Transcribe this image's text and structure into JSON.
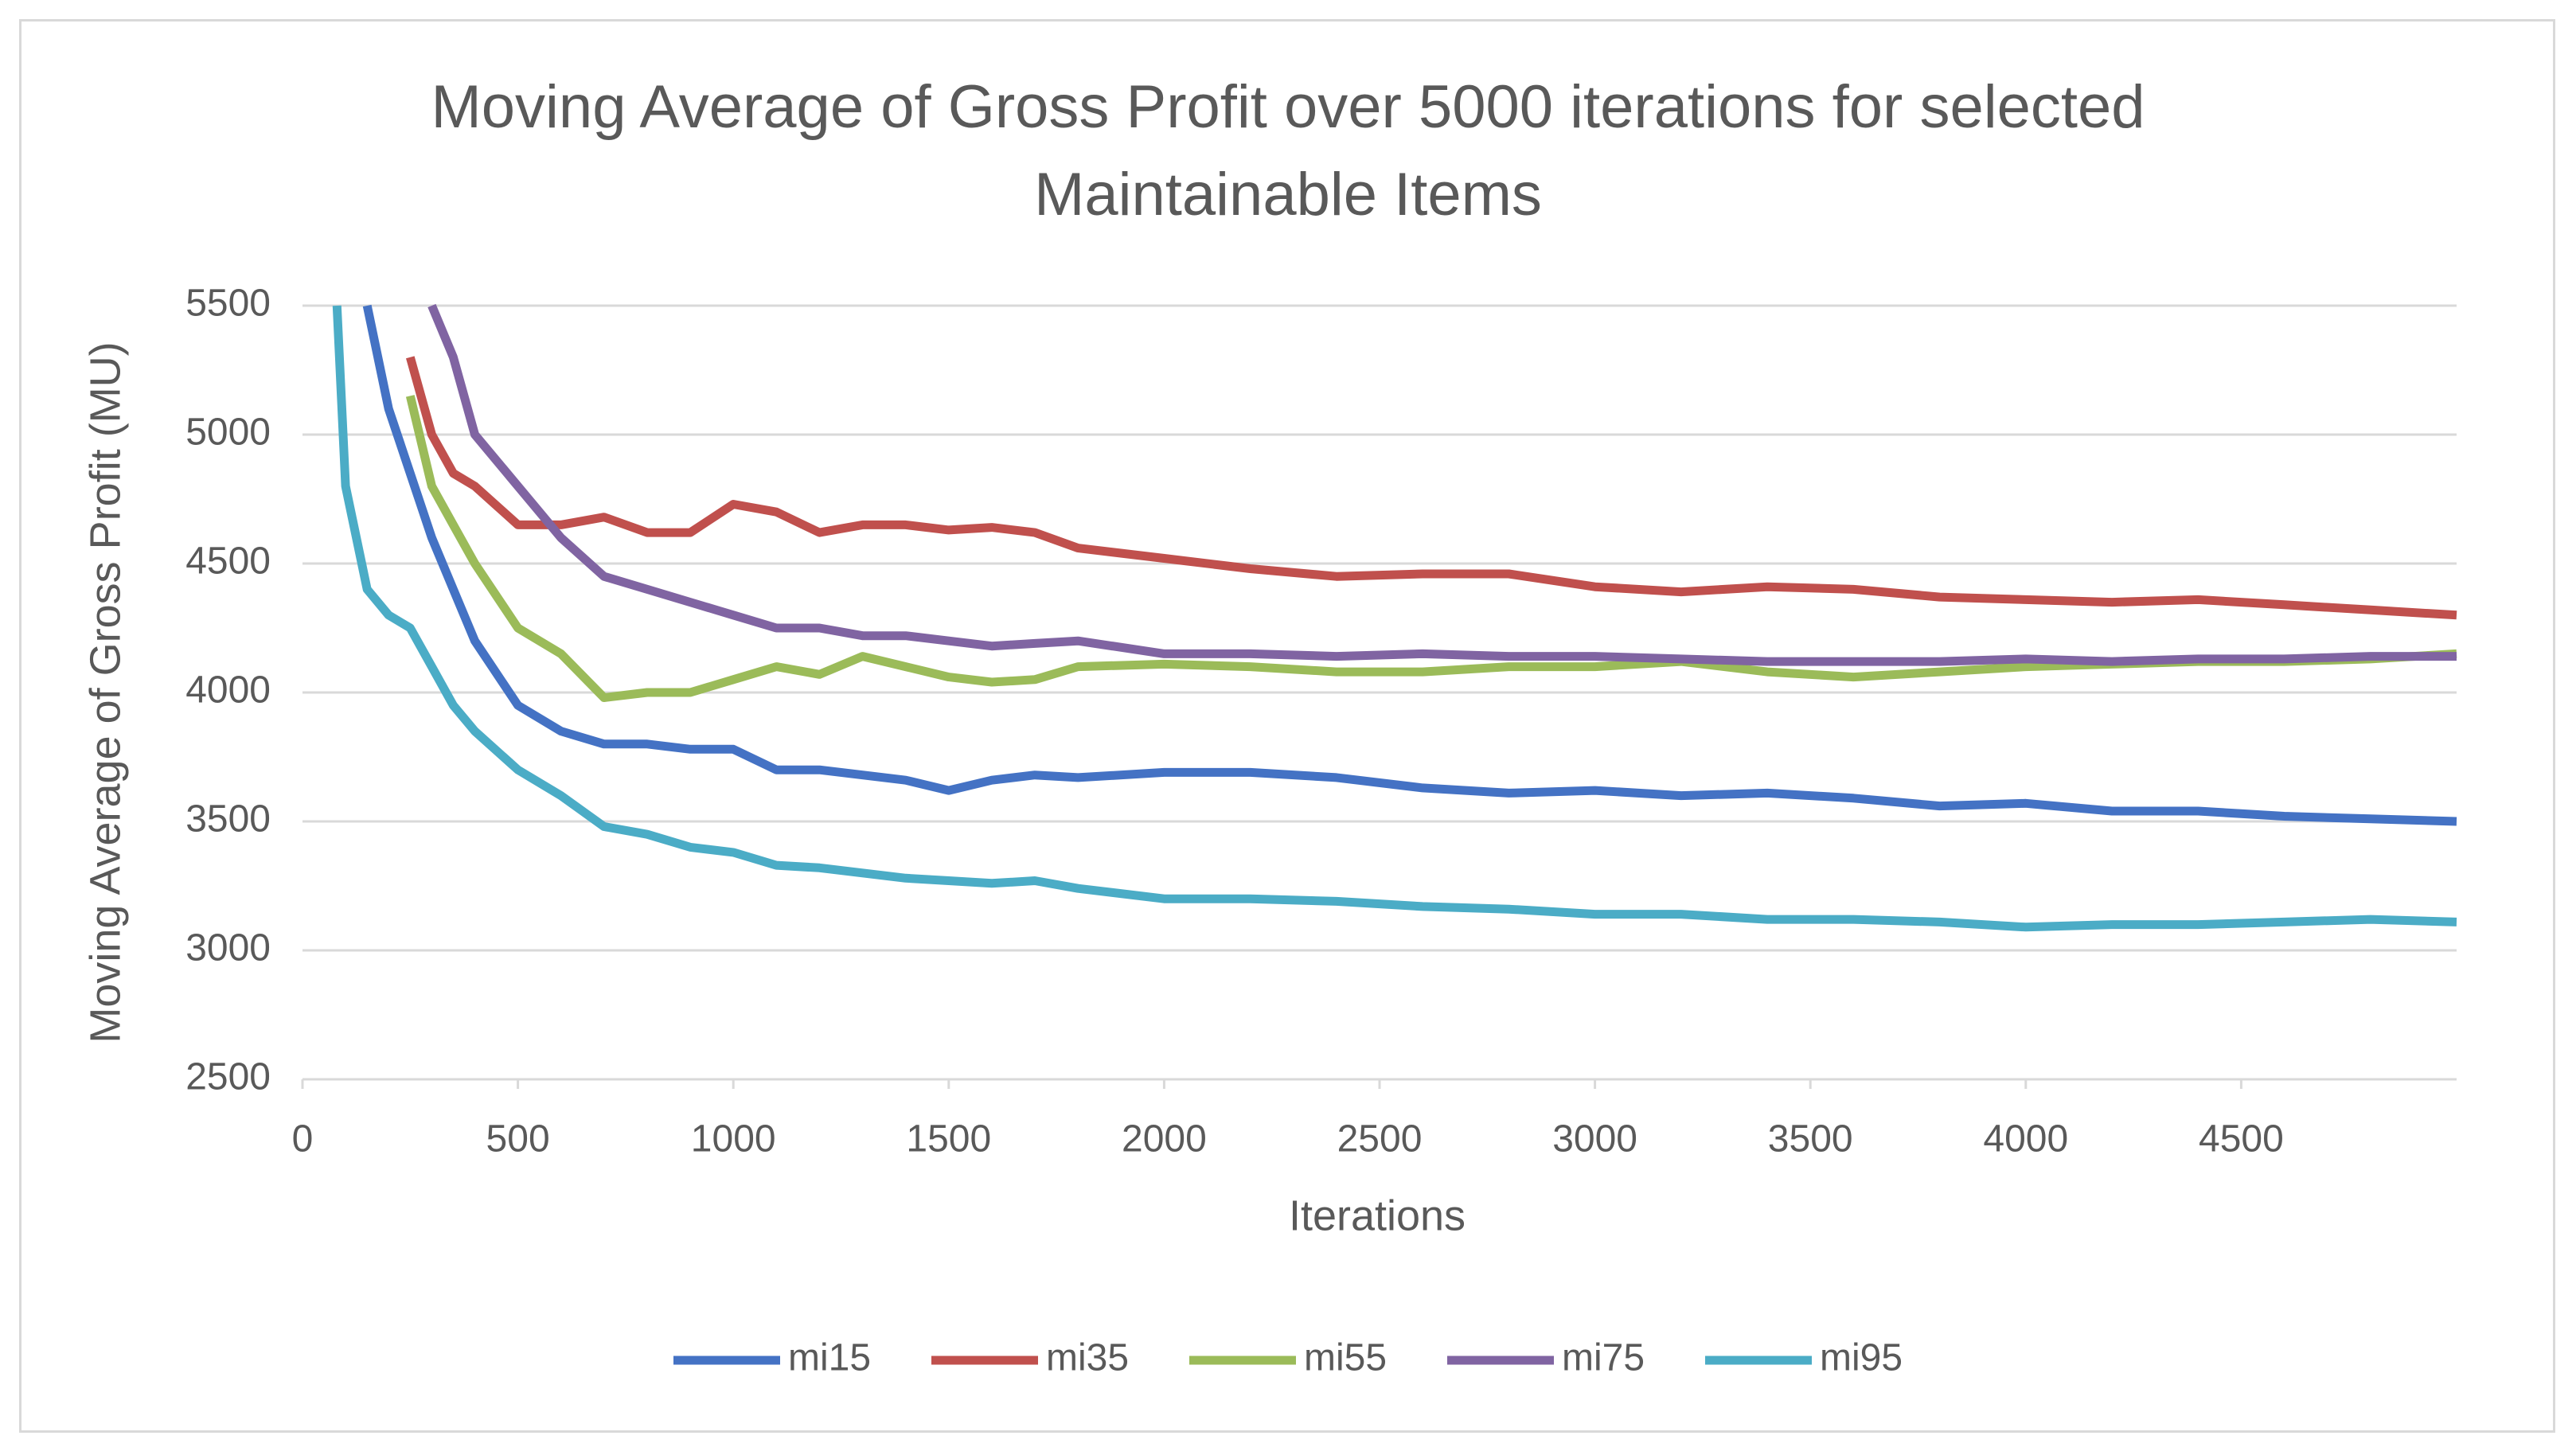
{
  "chart_data": {
    "type": "line",
    "title": "Moving Average of Gross Profit over 5000 iterations for selected Maintainable Items",
    "x_label": "Iterations",
    "y_label": "Moving Average of Gross Profit (MU)",
    "x": [
      80,
      100,
      150,
      200,
      250,
      300,
      350,
      400,
      500,
      600,
      700,
      800,
      900,
      1000,
      1100,
      1200,
      1300,
      1400,
      1500,
      1600,
      1700,
      1800,
      2000,
      2200,
      2400,
      2600,
      2800,
      3000,
      3200,
      3400,
      3600,
      3800,
      4000,
      4200,
      4400,
      4600,
      4800,
      5000
    ],
    "xlim": [
      0,
      5000
    ],
    "xticks": [
      0,
      500,
      1000,
      1500,
      2000,
      2500,
      3000,
      3500,
      4000,
      4500
    ],
    "ylim": [
      2500,
      5500
    ],
    "yticks": [
      2500,
      3000,
      3500,
      4000,
      4500,
      5000,
      5500
    ],
    "grid": true,
    "legend": "bottom",
    "series": [
      {
        "name": "mi15",
        "color": "#4472c4",
        "values": [
          null,
          null,
          5500,
          5100,
          4850,
          4600,
          4400,
          4200,
          3950,
          3850,
          3800,
          3800,
          3780,
          3780,
          3700,
          3700,
          3680,
          3660,
          3620,
          3660,
          3680,
          3670,
          3690,
          3690,
          3670,
          3630,
          3610,
          3620,
          3600,
          3610,
          3590,
          3560,
          3570,
          3540,
          3540,
          3520,
          3510,
          3500
        ]
      },
      {
        "name": "mi35",
        "color": "#c0504d",
        "values": [
          null,
          null,
          null,
          null,
          5300,
          5000,
          4850,
          4800,
          4650,
          4650,
          4680,
          4620,
          4620,
          4730,
          4700,
          4620,
          4650,
          4650,
          4630,
          4640,
          4620,
          4560,
          4520,
          4480,
          4450,
          4460,
          4460,
          4410,
          4390,
          4410,
          4400,
          4370,
          4360,
          4350,
          4360,
          4340,
          4320,
          4300
        ]
      },
      {
        "name": "mi55",
        "color": "#9bbb59",
        "values": [
          null,
          null,
          null,
          null,
          5150,
          4800,
          4650,
          4500,
          4250,
          4150,
          3980,
          4000,
          4000,
          4050,
          4100,
          4070,
          4140,
          4100,
          4060,
          4040,
          4050,
          4100,
          4110,
          4100,
          4080,
          4080,
          4100,
          4100,
          4120,
          4080,
          4060,
          4080,
          4100,
          4110,
          4120,
          4120,
          4130,
          4150
        ]
      },
      {
        "name": "mi75",
        "color": "#8064a2",
        "values": [
          null,
          null,
          null,
          null,
          null,
          5500,
          5300,
          5000,
          4800,
          4600,
          4450,
          4400,
          4350,
          4300,
          4250,
          4250,
          4220,
          4220,
          4200,
          4180,
          4190,
          4200,
          4150,
          4150,
          4140,
          4150,
          4140,
          4140,
          4130,
          4120,
          4120,
          4120,
          4130,
          4120,
          4130,
          4130,
          4140,
          4140
        ]
      },
      {
        "name": "mi95",
        "color": "#4bacc6",
        "values": [
          5500,
          4800,
          4400,
          4300,
          4250,
          4100,
          3950,
          3850,
          3700,
          3600,
          3480,
          3450,
          3400,
          3380,
          3330,
          3320,
          3300,
          3280,
          3270,
          3260,
          3270,
          3240,
          3200,
          3200,
          3190,
          3170,
          3160,
          3140,
          3140,
          3120,
          3120,
          3110,
          3090,
          3100,
          3100,
          3110,
          3120,
          3110
        ]
      }
    ]
  }
}
